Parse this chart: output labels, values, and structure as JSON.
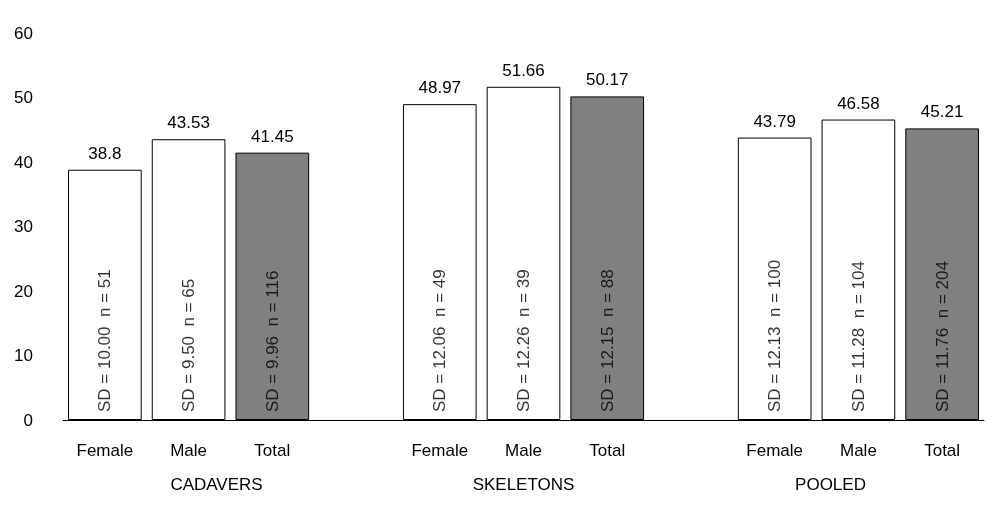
{
  "chart_data": {
    "type": "bar",
    "categories": [
      "Female",
      "Male",
      "Total",
      "Female",
      "Male",
      "Total",
      "Female",
      "Male",
      "Total"
    ],
    "values": [
      38.8,
      43.53,
      41.45,
      48.97,
      51.66,
      50.17,
      43.79,
      46.58,
      45.21
    ],
    "colors": [
      "#ffffff",
      "#ffffff",
      "#808080",
      "#ffffff",
      "#ffffff",
      "#808080",
      "#ffffff",
      "#ffffff",
      "#808080"
    ],
    "data_labels": true,
    "ylim": [
      0,
      60
    ],
    "yticks": [
      0,
      10,
      20,
      30,
      40,
      50,
      60
    ],
    "annotations": [
      "SD = 10.00  n = 51",
      "SD = 9.50  n = 65",
      "SD = 9.96  n = 116",
      "SD = 12.06  n = 49",
      "SD = 12.26  n = 39",
      "SD = 12.15  n = 88",
      "SD = 12.13  n = 100",
      "SD = 11.28  n = 104",
      "SD = 11.76  n = 204",
      "CADAVERS",
      "SKELETONS",
      "POOLED"
    ]
  }
}
